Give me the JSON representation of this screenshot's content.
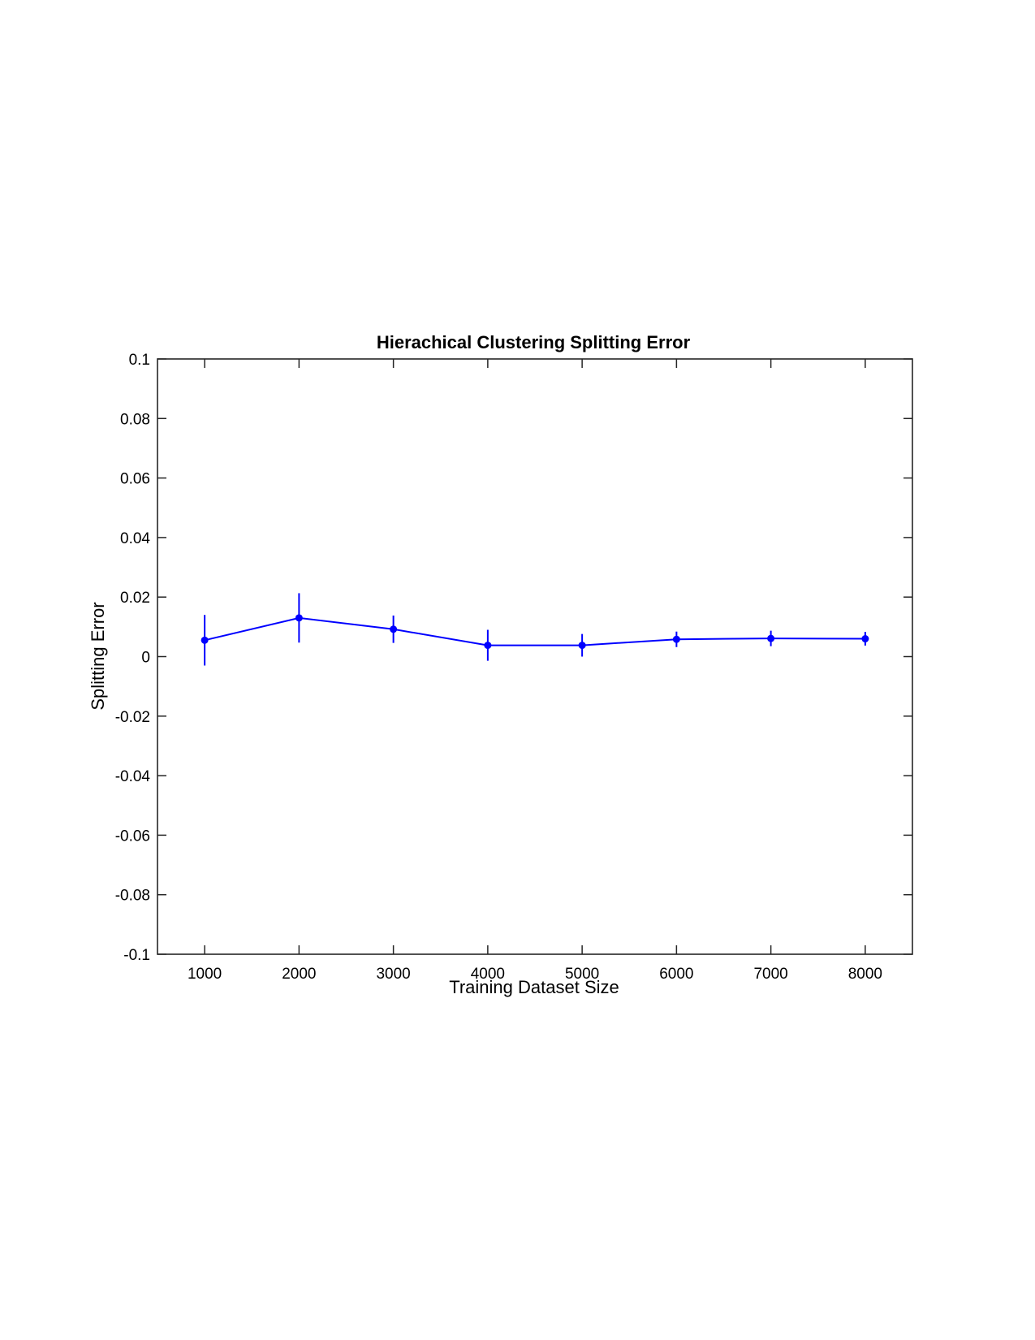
{
  "chart_data": {
    "type": "line",
    "title": "Hierachical Clustering Splitting Error",
    "xlabel": "Training Dataset Size",
    "ylabel": "Splitting Error",
    "xlim": [
      500,
      8500
    ],
    "ylim": [
      -0.1,
      0.1
    ],
    "x_ticks": [
      1000,
      2000,
      3000,
      4000,
      5000,
      6000,
      7000,
      8000
    ],
    "x_tick_labels": [
      "1000",
      "2000",
      "3000",
      "4000",
      "5000",
      "6000",
      "7000",
      "8000"
    ],
    "y_ticks": [
      0.1,
      0.08,
      0.06,
      0.04,
      0.02,
      0,
      -0.02,
      -0.04,
      -0.06,
      -0.08,
      -0.1
    ],
    "y_tick_labels": [
      "0.1",
      "0.08",
      "0.06",
      "0.04",
      "0.02",
      "0",
      "-0.02",
      "-0.04",
      "-0.06",
      "-0.08",
      "-0.1"
    ],
    "grid": false,
    "series": [
      {
        "color": "#0000ff",
        "x": [
          1000,
          2000,
          3000,
          4000,
          5000,
          6000,
          7000,
          8000
        ],
        "y": [
          0.0055,
          0.013,
          0.0092,
          0.0038,
          0.0038,
          0.0058,
          0.0061,
          0.006
        ],
        "error": [
          0.0085,
          0.0083,
          0.0046,
          0.0052,
          0.0038,
          0.0026,
          0.0026,
          0.0023
        ]
      }
    ]
  }
}
